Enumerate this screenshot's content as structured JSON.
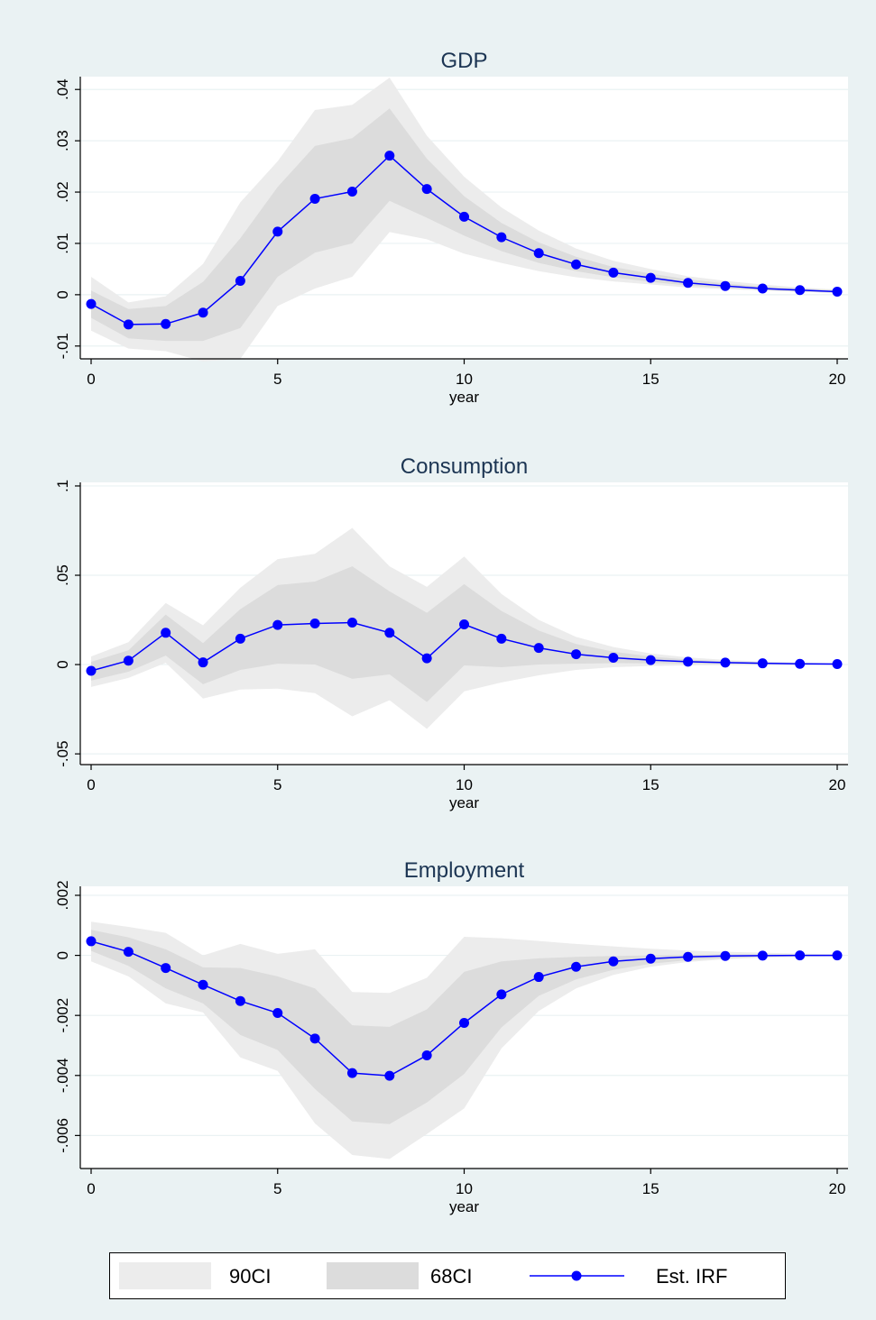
{
  "colors": {
    "background": "#eaf2f3",
    "plot_background": "#ffffff",
    "ci90": "#ececec",
    "ci68": "#dcdcdc",
    "irf": "#0000ff",
    "title": "#1c3553"
  },
  "legend": {
    "ci90_label": "90CI",
    "ci68_label": "68CI",
    "irf_label": "Est. IRF"
  },
  "chart_data": [
    {
      "type": "area",
      "title": "GDP",
      "xlabel": "year",
      "ylabel": "",
      "xlim": [
        0,
        20
      ],
      "ylim": [
        -0.0125,
        0.0425
      ],
      "xticks": [
        0,
        5,
        10,
        15,
        20
      ],
      "xtick_labels": [
        "0",
        "5",
        "10",
        "15",
        "20"
      ],
      "yticks": [
        -0.01,
        0,
        0.01,
        0.02,
        0.03,
        0.04
      ],
      "ytick_labels": [
        "-.01",
        "0",
        ".01",
        ".02",
        ".03",
        ".04"
      ],
      "grid": true,
      "x": [
        0,
        1,
        2,
        3,
        4,
        5,
        6,
        7,
        8,
        9,
        10,
        11,
        12,
        13,
        14,
        15,
        16,
        17,
        18,
        19,
        20
      ],
      "series": [
        {
          "name": "Est. IRF",
          "values": [
            -0.0018,
            -0.0058,
            -0.0057,
            -0.0035,
            0.0027,
            0.0123,
            0.0187,
            0.0201,
            0.0271,
            0.0206,
            0.0152,
            0.0112,
            0.0081,
            0.0059,
            0.0043,
            0.0033,
            0.0023,
            0.0017,
            0.0012,
            0.0009,
            0.0006
          ]
        },
        {
          "name": "68CI",
          "lower": [
            -0.0045,
            -0.0085,
            -0.009,
            -0.009,
            -0.0065,
            0.0035,
            0.0082,
            0.01,
            0.0183,
            0.015,
            0.0115,
            0.0085,
            0.0062,
            0.0046,
            0.0034,
            0.0025,
            0.0018,
            0.0013,
            0.0009,
            0.0006,
            0.0004
          ],
          "upper": [
            0.0008,
            -0.0028,
            -0.0022,
            0.0025,
            0.011,
            0.021,
            0.029,
            0.0305,
            0.0363,
            0.0265,
            0.0192,
            0.014,
            0.0102,
            0.0074,
            0.0054,
            0.0041,
            0.003,
            0.0022,
            0.0016,
            0.0012,
            0.0009
          ]
        },
        {
          "name": "90CI",
          "lower": [
            -0.007,
            -0.0105,
            -0.011,
            -0.013,
            -0.0125,
            -0.0022,
            0.0012,
            0.0035,
            0.0122,
            0.0108,
            0.008,
            0.0062,
            0.0046,
            0.0034,
            0.0026,
            0.002,
            0.0014,
            0.0011,
            0.0008,
            0.0006,
            0.0003
          ],
          "upper": [
            0.0035,
            -0.0015,
            -0.0003,
            0.006,
            0.018,
            0.026,
            0.036,
            0.037,
            0.0423,
            0.031,
            0.023,
            0.017,
            0.0125,
            0.009,
            0.0066,
            0.005,
            0.0036,
            0.0027,
            0.002,
            0.0014,
            0.001
          ]
        }
      ]
    },
    {
      "type": "area",
      "title": "Consumption",
      "xlabel": "year",
      "ylabel": "",
      "xlim": [
        0,
        20
      ],
      "ylim": [
        -0.056,
        0.102
      ],
      "xticks": [
        0,
        5,
        10,
        15,
        20
      ],
      "xtick_labels": [
        "0",
        "5",
        "10",
        "15",
        "20"
      ],
      "yticks": [
        -0.05,
        0,
        0.05,
        0.1
      ],
      "ytick_labels": [
        "-.05",
        "0",
        ".05",
        ".1"
      ],
      "grid": true,
      "x": [
        0,
        1,
        2,
        3,
        4,
        5,
        6,
        7,
        8,
        9,
        10,
        11,
        12,
        13,
        14,
        15,
        16,
        17,
        18,
        19,
        20
      ],
      "series": [
        {
          "name": "Est. IRF",
          "values": [
            -0.0035,
            0.0022,
            0.0178,
            0.0012,
            0.0145,
            0.0222,
            0.023,
            0.0235,
            0.0178,
            0.0035,
            0.0225,
            0.0145,
            0.0093,
            0.0058,
            0.0038,
            0.0025,
            0.0016,
            0.0011,
            0.0007,
            0.0004,
            0.0003
          ]
        },
        {
          "name": "68CI",
          "lower": [
            -0.009,
            -0.004,
            0.005,
            -0.011,
            -0.003,
            0.0005,
            0.0,
            -0.008,
            -0.0055,
            -0.021,
            -0.0005,
            -0.0015,
            0.0,
            0.0005,
            0.0008,
            0.0007,
            0.0005,
            0.0003,
            0.0002,
            0.0001,
            0.0
          ],
          "upper": [
            0.0015,
            0.008,
            0.028,
            0.012,
            0.031,
            0.0445,
            0.0465,
            0.055,
            0.041,
            0.029,
            0.045,
            0.03,
            0.019,
            0.0115,
            0.0072,
            0.0045,
            0.0028,
            0.0018,
            0.0012,
            0.0008,
            0.0005
          ]
        },
        {
          "name": "90CI",
          "lower": [
            -0.0125,
            -0.0075,
            0.001,
            -0.019,
            -0.014,
            -0.0135,
            -0.016,
            -0.029,
            -0.02,
            -0.036,
            -0.015,
            -0.01,
            -0.006,
            -0.003,
            -0.0015,
            -0.0008,
            -0.0005,
            -0.0003,
            -0.0002,
            -0.0001,
            -0.0001
          ],
          "upper": [
            0.0045,
            0.0125,
            0.0345,
            0.022,
            0.043,
            0.059,
            0.062,
            0.0765,
            0.055,
            0.0435,
            0.0605,
            0.0395,
            0.025,
            0.0155,
            0.0098,
            0.0062,
            0.004,
            0.0026,
            0.0017,
            0.0011,
            0.0008
          ]
        }
      ]
    },
    {
      "type": "area",
      "title": "Employment",
      "xlabel": "year",
      "ylabel": "",
      "xlim": [
        0,
        20
      ],
      "ylim": [
        -0.0071,
        0.0023
      ],
      "xticks": [
        0,
        5,
        10,
        15,
        20
      ],
      "xtick_labels": [
        "0",
        "5",
        "10",
        "15",
        "20"
      ],
      "yticks": [
        -0.006,
        -0.004,
        -0.002,
        0,
        0.002
      ],
      "ytick_labels": [
        "-.006",
        "-.004",
        "-.002",
        "0",
        ".002"
      ],
      "grid": true,
      "x": [
        0,
        1,
        2,
        3,
        4,
        5,
        6,
        7,
        8,
        9,
        10,
        11,
        12,
        13,
        14,
        15,
        16,
        17,
        18,
        19,
        20
      ],
      "series": [
        {
          "name": "Est. IRF",
          "values": [
            0.00047,
            0.00012,
            -0.00042,
            -0.00098,
            -0.00152,
            -0.00192,
            -0.00277,
            -0.00392,
            -0.00401,
            -0.00333,
            -0.00225,
            -0.0013,
            -0.00072,
            -0.00038,
            -0.0002,
            -0.00011,
            -5e-05,
            -2e-05,
            -1e-05,
            0.0,
            0.0
          ]
        },
        {
          "name": "68CI",
          "lower": [
            0.00015,
            -0.00035,
            -0.0011,
            -0.0016,
            -0.00265,
            -0.00315,
            -0.00445,
            -0.00553,
            -0.00562,
            -0.0049,
            -0.00395,
            -0.0024,
            -0.00135,
            -0.0008,
            -0.00048,
            -0.00028,
            -0.00016,
            -9e-05,
            -5e-05,
            -3e-05,
            -2e-05
          ],
          "upper": [
            0.00085,
            0.0006,
            0.0002,
            -0.0004,
            -0.00042,
            -0.0007,
            -0.0011,
            -0.00233,
            -0.00238,
            -0.0018,
            -0.00055,
            -0.0002,
            -0.0001,
            -5e-05,
            -2e-05,
            0.0,
            2e-05,
            3e-05,
            3e-05,
            2e-05,
            2e-05
          ]
        },
        {
          "name": "90CI",
          "lower": [
            -0.0002,
            -0.0007,
            -0.0016,
            -0.0019,
            -0.0034,
            -0.00385,
            -0.0056,
            -0.00665,
            -0.00678,
            -0.00595,
            -0.0051,
            -0.0031,
            -0.00185,
            -0.0011,
            -0.00065,
            -0.00038,
            -0.00022,
            -0.00013,
            -8e-05,
            -5e-05,
            -3e-05
          ],
          "upper": [
            0.00112,
            0.00095,
            0.00075,
            0.0,
            0.00038,
            5e-05,
            0.0002,
            -0.00122,
            -0.00125,
            -0.00075,
            0.00062,
            0.00057,
            0.00048,
            0.00038,
            0.0003,
            0.00022,
            0.00016,
            0.00012,
            9e-05,
            6e-05,
            4e-05
          ]
        }
      ]
    }
  ]
}
